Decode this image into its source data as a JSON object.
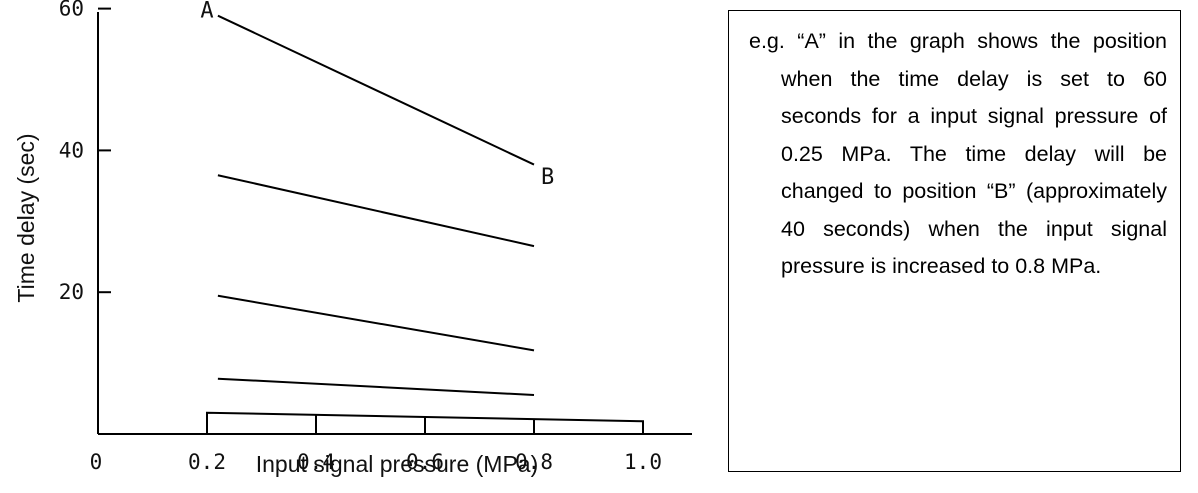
{
  "chart_data": {
    "type": "line",
    "xlabel": "Input signal pressure (MPa)",
    "ylabel": "Time delay (sec)",
    "xlim": [
      0,
      1.0
    ],
    "ylim": [
      0,
      70
    ],
    "x_ticks": [
      0,
      0.2,
      0.4,
      0.6,
      0.8,
      1.0
    ],
    "x_tick_labels": [
      "0",
      "0.2",
      "0.4",
      "0.6",
      "0.8",
      "1.0"
    ],
    "y_ticks": [
      20,
      40,
      60
    ],
    "y_tick_labels": [
      "20",
      "40",
      "60"
    ],
    "grid": false,
    "series": [
      {
        "x": [
          0.22,
          0.8
        ],
        "y": [
          59,
          38
        ]
      },
      {
        "x": [
          0.22,
          0.8
        ],
        "y": [
          36.5,
          26.5
        ]
      },
      {
        "x": [
          0.22,
          0.8
        ],
        "y": [
          19.5,
          11.8
        ]
      },
      {
        "x": [
          0.22,
          0.8
        ],
        "y": [
          7.8,
          5.5
        ]
      }
    ],
    "bar_outline": {
      "x": [
        0.2,
        1.0
      ],
      "y": [
        3,
        1.8
      ]
    },
    "annotations": [
      {
        "text": "A",
        "x": 0.2,
        "y": 60
      },
      {
        "text": "B",
        "x": 0.825,
        "y": 36.5
      }
    ]
  },
  "note": {
    "text": "e.g. “A” in the graph shows the position when the time delay is set to 60 seconds for a input signal pressure of 0.25 MPa. The time delay will be changed to position “B” (approximately 40 seconds) when the input signal pressure is increased to 0.8 MPa."
  }
}
